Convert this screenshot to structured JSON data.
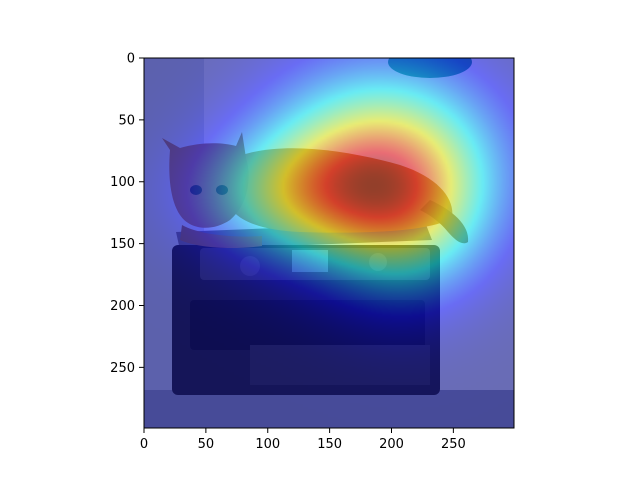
{
  "chart_data": {
    "type": "heatmap",
    "title": "",
    "xlabel": "",
    "ylabel": "",
    "xlim": [
      0,
      299
    ],
    "ylim": [
      299,
      0
    ],
    "xticks": [
      0,
      50,
      100,
      150,
      200,
      250
    ],
    "yticks": [
      0,
      50,
      100,
      150,
      200,
      250
    ],
    "xtick_labels": [
      "0",
      "50",
      "100",
      "150",
      "200",
      "250"
    ],
    "ytick_labels": [
      "0",
      "50",
      "100",
      "150",
      "200",
      "250"
    ],
    "grid": false,
    "legend": "none",
    "colormap": "jet",
    "overlay_alpha": 0.5,
    "background_image": "cat lying on top of a printer",
    "heat_peak": [
      190,
      85
    ],
    "heat_sources": [
      {
        "x": 190,
        "y": 85,
        "sx": 65,
        "sy": 55,
        "weight": 1.0
      },
      {
        "x": 130,
        "y": 110,
        "sx": 60,
        "sy": 35,
        "weight": 0.55
      },
      {
        "x": 215,
        "y": 130,
        "sx": 45,
        "sy": 50,
        "weight": 0.45
      }
    ],
    "colors": {
      "axes": "#000000",
      "background": "#ffffff",
      "cat_fur": "#a67f55",
      "printer_body": "#2b2b30",
      "wall": "#cfd7e6"
    }
  }
}
